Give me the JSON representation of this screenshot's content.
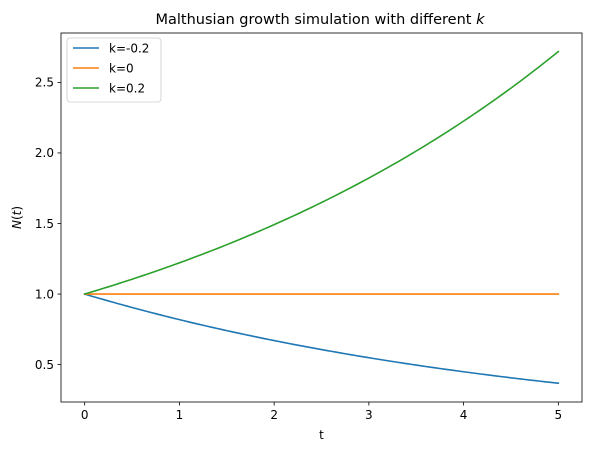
{
  "chart_data": {
    "type": "line",
    "title": "Malthusian growth simulation with different k",
    "title_main": "Malthusian growth simulation with different ",
    "title_italic": "k",
    "xlabel": "t",
    "ylabel": "N(t)",
    "ylabel_parts": {
      "italic_1": "N",
      "paren_open": "(",
      "italic_2": "t",
      "paren_close": ")"
    },
    "xlim": [
      -0.25,
      5.25
    ],
    "ylim": [
      0.235,
      2.85
    ],
    "xticks": [
      0,
      1,
      2,
      3,
      4,
      5
    ],
    "xtick_labels": [
      "0",
      "1",
      "2",
      "3",
      "4",
      "5"
    ],
    "yticks": [
      0.5,
      1.0,
      1.5,
      2.0,
      2.5
    ],
    "ytick_labels": [
      "0.5",
      "1.0",
      "1.5",
      "2.0",
      "2.5"
    ],
    "grid": false,
    "legend_position": "top-left",
    "series": [
      {
        "name": "k=-0.2",
        "color": "#1f77b4",
        "x": [
          0,
          0.5,
          1,
          1.5,
          2,
          2.5,
          3,
          3.5,
          4,
          4.5,
          5
        ],
        "values": [
          1.0,
          0.905,
          0.819,
          0.741,
          0.67,
          0.607,
          0.549,
          0.497,
          0.449,
          0.407,
          0.368
        ]
      },
      {
        "name": "k=0",
        "color": "#ff7f0e",
        "x": [
          0,
          0.5,
          1,
          1.5,
          2,
          2.5,
          3,
          3.5,
          4,
          4.5,
          5
        ],
        "values": [
          1.0,
          1.0,
          1.0,
          1.0,
          1.0,
          1.0,
          1.0,
          1.0,
          1.0,
          1.0,
          1.0
        ]
      },
      {
        "name": "k=0.2",
        "color": "#2ca02c",
        "x": [
          0,
          0.5,
          1,
          1.5,
          2,
          2.5,
          3,
          3.5,
          4,
          4.5,
          5
        ],
        "values": [
          1.0,
          1.105,
          1.221,
          1.35,
          1.492,
          1.649,
          1.822,
          2.014,
          2.226,
          2.46,
          2.718
        ]
      }
    ]
  }
}
